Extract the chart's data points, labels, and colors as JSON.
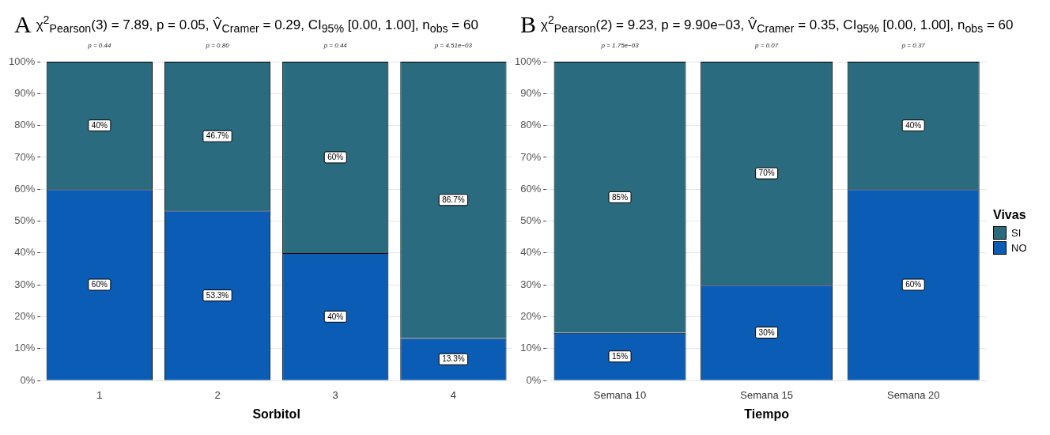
{
  "chart_data": [
    {
      "type": "bar",
      "title": "χ$^{2}$$_{Pearson}$(3) = 7.89, p = 0.05, V̂$_{Cramer}$ = 0.29, CI$_{95%}$ [0.00, 1.00], n$_{obs}$ = 60",
      "xlabel": "Sorbitol",
      "categories": [
        "1",
        "2",
        "3",
        "4"
      ],
      "stacked": true,
      "ylim": [
        0,
        100
      ],
      "yticks": [
        {
          "value": 0,
          "label": "0%"
        },
        {
          "value": 10,
          "label": "10%"
        },
        {
          "value": 20,
          "label": "20%"
        },
        {
          "value": 30,
          "label": "30%"
        },
        {
          "value": 40,
          "label": "40%"
        },
        {
          "value": 50,
          "label": "50%"
        },
        {
          "value": 60,
          "label": "60%"
        },
        {
          "value": 70,
          "label": "70%"
        },
        {
          "value": 80,
          "label": "80%"
        },
        {
          "value": 90,
          "label": "90%"
        },
        {
          "value": 100,
          "label": "100%"
        }
      ],
      "grid": "y",
      "legend": false,
      "series": [
        {
          "color": "#0a5cb4",
          "values": [
            60,
            53.3,
            40,
            13.3
          ],
          "value_labels": [
            "60%",
            "53.3%",
            "40%",
            "13.3%"
          ]
        },
        {
          "color": "#2a6b80",
          "values": [
            40,
            46.7,
            60,
            86.7
          ],
          "value_labels": [
            "40%",
            "46.7%",
            "60%",
            "86.7%"
          ]
        }
      ],
      "annotations": [
        "A",
        {
          "text": "p = 0.44",
          "x": "1",
          "y": 100
        },
        {
          "text": "p = 0.80",
          "x": "2",
          "y": 100
        },
        {
          "text": "p = 0.44",
          "x": "3",
          "y": 100
        },
        {
          "text": "p = 4.51e−03",
          "x": "4",
          "y": 100
        }
      ]
    },
    {
      "type": "bar",
      "title": "χ$^{2}$$_{Pearson}$(2) = 9.23, p = 9.90e−03, V̂$_{Cramer}$ = 0.35, CI$_{95%}$ [0.00, 1.00], n$_{obs}$ = 60",
      "xlabel": "Tiempo",
      "categories": [
        "Semana 10",
        "Semana 15",
        "Semana 20"
      ],
      "stacked": true,
      "ylim": [
        0,
        100
      ],
      "yticks": [
        {
          "value": 0,
          "label": "0%"
        },
        {
          "value": 10,
          "label": "10%"
        },
        {
          "value": 20,
          "label": "20%"
        },
        {
          "value": 30,
          "label": "30%"
        },
        {
          "value": 40,
          "label": "40%"
        },
        {
          "value": 50,
          "label": "50%"
        },
        {
          "value": 60,
          "label": "60%"
        },
        {
          "value": 70,
          "label": "70%"
        },
        {
          "value": 80,
          "label": "80%"
        },
        {
          "value": 90,
          "label": "90%"
        },
        {
          "value": 100,
          "label": "100%"
        }
      ],
      "grid": "y",
      "legend": "right",
      "legend_title": "Vivas",
      "series": [
        {
          "name": "NO",
          "color": "#0a5cb4",
          "values": [
            15,
            30,
            60
          ],
          "value_labels": [
            "15%",
            "30%",
            "60%"
          ]
        },
        {
          "name": "SI",
          "color": "#2a6b80",
          "values": [
            85,
            70,
            40
          ],
          "value_labels": [
            "85%",
            "70%",
            "40%"
          ]
        }
      ],
      "annotations": [
        "B",
        {
          "text": "p = 1.75e−03",
          "x": "Semana 10",
          "y": 100
        },
        {
          "text": "p = 0.07",
          "x": "Semana 15",
          "y": 100
        },
        {
          "text": "p = 0.37",
          "x": "Semana 20",
          "y": 100
        }
      ]
    }
  ]
}
